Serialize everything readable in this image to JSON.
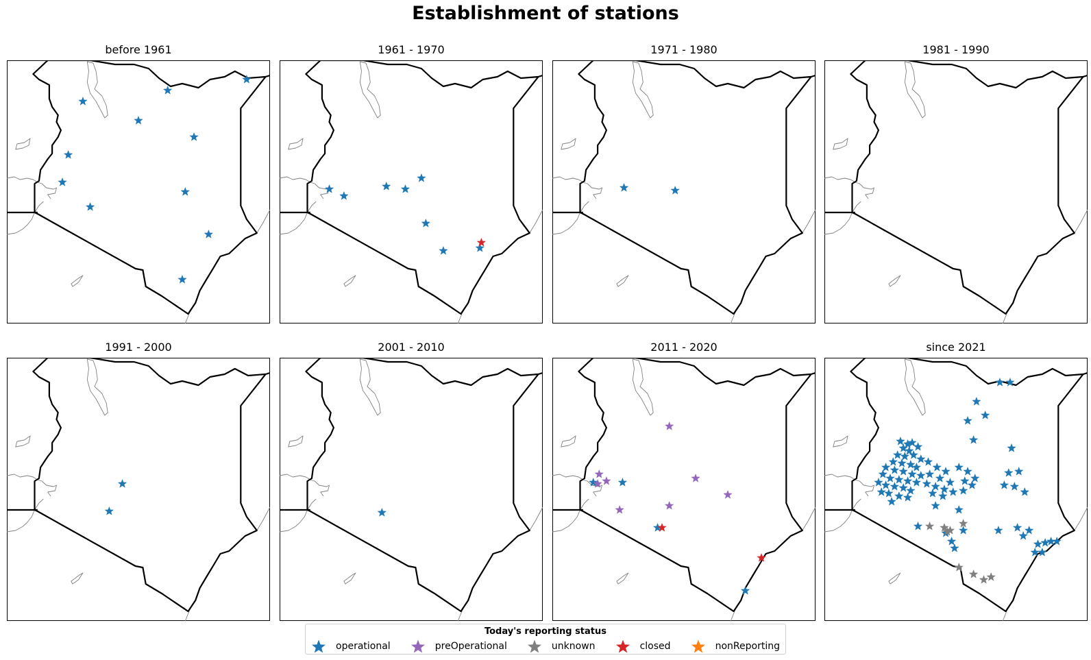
{
  "figure": {
    "title": "Establishment of stations"
  },
  "colors": {
    "operational": "#1f77b4",
    "preOperational": "#9467bd",
    "unknown": "#7f7f7f",
    "closed": "#d62728",
    "nonReporting": "#ff7f0e",
    "border": "#000000",
    "water": "#808080"
  },
  "legend": {
    "title": "Today's reporting status",
    "items": [
      {
        "key": "operational",
        "label": "operational"
      },
      {
        "key": "preOperational",
        "label": "preOperational"
      },
      {
        "key": "unknown",
        "label": "unknown"
      },
      {
        "key": "closed",
        "label": "closed"
      },
      {
        "key": "nonReporting",
        "label": "nonReporting"
      }
    ]
  },
  "chart_data": {
    "type": "map",
    "region": "Kenya",
    "marker": "star",
    "panels": [
      {
        "title": "before 1961",
        "stations": [
          {
            "lon": 35.6,
            "lat": 3.1,
            "status": "operational"
          },
          {
            "lon": 37.5,
            "lat": 2.4,
            "status": "operational"
          },
          {
            "lon": 38.5,
            "lat": 3.5,
            "status": "operational"
          },
          {
            "lon": 41.2,
            "lat": 3.9,
            "status": "operational"
          },
          {
            "lon": 39.4,
            "lat": 1.8,
            "status": "operational"
          },
          {
            "lon": 35.1,
            "lat": 1.15,
            "status": "operational"
          },
          {
            "lon": 34.9,
            "lat": 0.15,
            "status": "operational"
          },
          {
            "lon": 39.1,
            "lat": -0.2,
            "status": "operational"
          },
          {
            "lon": 35.85,
            "lat": -0.75,
            "status": "operational"
          },
          {
            "lon": 39.9,
            "lat": -1.75,
            "status": "operational"
          },
          {
            "lon": 39.0,
            "lat": -3.4,
            "status": "operational"
          }
        ]
      },
      {
        "title": "1961 - 1970",
        "stations": [
          {
            "lon": 34.7,
            "lat": -0.1,
            "status": "operational"
          },
          {
            "lon": 35.2,
            "lat": -0.35,
            "status": "operational"
          },
          {
            "lon": 36.65,
            "lat": 0.0,
            "status": "operational"
          },
          {
            "lon": 37.3,
            "lat": -0.1,
            "status": "operational"
          },
          {
            "lon": 37.85,
            "lat": 0.3,
            "status": "operational"
          },
          {
            "lon": 38.0,
            "lat": -1.35,
            "status": "operational"
          },
          {
            "lon": 38.6,
            "lat": -2.35,
            "status": "operational"
          },
          {
            "lon": 39.85,
            "lat": -2.25,
            "status": "operational"
          },
          {
            "lon": 39.9,
            "lat": -2.05,
            "status": "closed"
          }
        ]
      },
      {
        "title": "1971 - 1980",
        "stations": [
          {
            "lon": 35.45,
            "lat": -0.05,
            "status": "operational"
          },
          {
            "lon": 37.2,
            "lat": -0.15,
            "status": "operational"
          }
        ]
      },
      {
        "title": "1981 - 1990",
        "stations": []
      },
      {
        "title": "1991 - 2000",
        "stations": [
          {
            "lon": 36.95,
            "lat": 0.0,
            "status": "operational"
          },
          {
            "lon": 36.5,
            "lat": -1.0,
            "status": "operational"
          }
        ]
      },
      {
        "title": "2001 - 2010",
        "stations": [
          {
            "lon": 36.5,
            "lat": -1.05,
            "status": "operational"
          }
        ]
      },
      {
        "title": "2011 - 2020",
        "stations": [
          {
            "lon": 37.0,
            "lat": 2.1,
            "status": "preOperational"
          },
          {
            "lon": 34.6,
            "lat": 0.35,
            "status": "preOperational"
          },
          {
            "lon": 34.85,
            "lat": 0.1,
            "status": "preOperational"
          },
          {
            "lon": 34.4,
            "lat": 0.05,
            "status": "operational"
          },
          {
            "lon": 34.55,
            "lat": 0.0,
            "status": "preOperational"
          },
          {
            "lon": 35.4,
            "lat": 0.05,
            "status": "operational"
          },
          {
            "lon": 37.9,
            "lat": 0.2,
            "status": "preOperational"
          },
          {
            "lon": 39.0,
            "lat": -0.4,
            "status": "preOperational"
          },
          {
            "lon": 37.0,
            "lat": -0.8,
            "status": "preOperational"
          },
          {
            "lon": 35.3,
            "lat": -0.95,
            "status": "preOperational"
          },
          {
            "lon": 36.6,
            "lat": -1.6,
            "status": "operational"
          },
          {
            "lon": 36.75,
            "lat": -1.6,
            "status": "closed"
          },
          {
            "lon": 40.15,
            "lat": -2.7,
            "status": "closed"
          },
          {
            "lon": 39.6,
            "lat": -3.9,
            "status": "operational"
          }
        ]
      },
      {
        "title": "since 2021",
        "stations": [
          {
            "lon": 39.0,
            "lat": 3.7,
            "status": "operational"
          },
          {
            "lon": 39.35,
            "lat": 3.7,
            "status": "operational"
          },
          {
            "lon": 38.2,
            "lat": 3.0,
            "status": "operational"
          },
          {
            "lon": 38.5,
            "lat": 2.5,
            "status": "operational"
          },
          {
            "lon": 37.9,
            "lat": 2.3,
            "status": "operational"
          },
          {
            "lon": 38.1,
            "lat": 1.6,
            "status": "operational"
          },
          {
            "lon": 39.4,
            "lat": 1.3,
            "status": "operational"
          },
          {
            "lon": 35.6,
            "lat": 1.55,
            "status": "operational"
          },
          {
            "lon": 35.85,
            "lat": 1.45,
            "status": "operational"
          },
          {
            "lon": 36.0,
            "lat": 1.5,
            "status": "operational"
          },
          {
            "lon": 35.7,
            "lat": 1.3,
            "status": "operational"
          },
          {
            "lon": 35.9,
            "lat": 1.2,
            "status": "operational"
          },
          {
            "lon": 36.2,
            "lat": 1.35,
            "status": "operational"
          },
          {
            "lon": 35.5,
            "lat": 1.05,
            "status": "operational"
          },
          {
            "lon": 35.75,
            "lat": 1.0,
            "status": "operational"
          },
          {
            "lon": 36.05,
            "lat": 1.05,
            "status": "operational"
          },
          {
            "lon": 36.3,
            "lat": 0.9,
            "status": "operational"
          },
          {
            "lon": 35.35,
            "lat": 0.8,
            "status": "operational"
          },
          {
            "lon": 35.65,
            "lat": 0.75,
            "status": "operational"
          },
          {
            "lon": 35.95,
            "lat": 0.7,
            "status": "operational"
          },
          {
            "lon": 36.15,
            "lat": 0.6,
            "status": "operational"
          },
          {
            "lon": 35.1,
            "lat": 0.6,
            "status": "operational"
          },
          {
            "lon": 35.4,
            "lat": 0.5,
            "status": "operational"
          },
          {
            "lon": 35.7,
            "lat": 0.45,
            "status": "operational"
          },
          {
            "lon": 36.0,
            "lat": 0.35,
            "status": "operational"
          },
          {
            "lon": 36.3,
            "lat": 0.3,
            "status": "operational"
          },
          {
            "lon": 35.0,
            "lat": 0.35,
            "status": "operational"
          },
          {
            "lon": 35.25,
            "lat": 0.2,
            "status": "operational"
          },
          {
            "lon": 35.55,
            "lat": 0.15,
            "status": "operational"
          },
          {
            "lon": 35.85,
            "lat": 0.1,
            "status": "operational"
          },
          {
            "lon": 36.15,
            "lat": 0.05,
            "status": "operational"
          },
          {
            "lon": 34.85,
            "lat": 0.05,
            "status": "operational"
          },
          {
            "lon": 35.1,
            "lat": -0.05,
            "status": "operational"
          },
          {
            "lon": 35.4,
            "lat": -0.1,
            "status": "operational"
          },
          {
            "lon": 35.7,
            "lat": -0.15,
            "status": "operational"
          },
          {
            "lon": 35.95,
            "lat": -0.25,
            "status": "operational"
          },
          {
            "lon": 35.2,
            "lat": -0.35,
            "status": "operational"
          },
          {
            "lon": 35.55,
            "lat": -0.45,
            "status": "operational"
          },
          {
            "lon": 35.85,
            "lat": -0.5,
            "status": "operational"
          },
          {
            "lon": 34.95,
            "lat": -0.3,
            "status": "operational"
          },
          {
            "lon": 35.3,
            "lat": -0.65,
            "status": "operational"
          },
          {
            "lon": 36.55,
            "lat": 0.8,
            "status": "operational"
          },
          {
            "lon": 36.85,
            "lat": 0.6,
            "status": "operational"
          },
          {
            "lon": 37.15,
            "lat": 0.45,
            "status": "operational"
          },
          {
            "lon": 36.6,
            "lat": 0.35,
            "status": "operational"
          },
          {
            "lon": 36.95,
            "lat": 0.2,
            "status": "operational"
          },
          {
            "lon": 37.3,
            "lat": 0.05,
            "status": "operational"
          },
          {
            "lon": 36.5,
            "lat": 0.0,
            "status": "operational"
          },
          {
            "lon": 36.8,
            "lat": -0.1,
            "status": "operational"
          },
          {
            "lon": 37.1,
            "lat": -0.2,
            "status": "operational"
          },
          {
            "lon": 37.4,
            "lat": -0.3,
            "status": "operational"
          },
          {
            "lon": 36.7,
            "lat": -0.35,
            "status": "operational"
          },
          {
            "lon": 37.05,
            "lat": -0.45,
            "status": "operational"
          },
          {
            "lon": 37.6,
            "lat": 0.6,
            "status": "operational"
          },
          {
            "lon": 37.9,
            "lat": 0.45,
            "status": "operational"
          },
          {
            "lon": 38.15,
            "lat": 0.2,
            "status": "operational"
          },
          {
            "lon": 37.8,
            "lat": 0.1,
            "status": "operational"
          },
          {
            "lon": 38.05,
            "lat": -0.05,
            "status": "operational"
          },
          {
            "lon": 37.75,
            "lat": -0.25,
            "status": "operational"
          },
          {
            "lon": 36.8,
            "lat": -0.8,
            "status": "operational"
          },
          {
            "lon": 37.6,
            "lat": -0.95,
            "status": "operational"
          },
          {
            "lon": 39.3,
            "lat": 0.4,
            "status": "operational"
          },
          {
            "lon": 39.65,
            "lat": 0.45,
            "status": "operational"
          },
          {
            "lon": 39.15,
            "lat": -0.05,
            "status": "operational"
          },
          {
            "lon": 39.5,
            "lat": -0.1,
            "status": "operational"
          },
          {
            "lon": 39.85,
            "lat": -0.3,
            "status": "operational"
          },
          {
            "lon": 36.2,
            "lat": -1.55,
            "status": "operational"
          },
          {
            "lon": 37.15,
            "lat": -1.8,
            "status": "operational"
          },
          {
            "lon": 37.35,
            "lat": -2.1,
            "status": "operational"
          },
          {
            "lon": 37.45,
            "lat": -2.35,
            "status": "operational"
          },
          {
            "lon": 37.75,
            "lat": -1.7,
            "status": "operational"
          },
          {
            "lon": 38.95,
            "lat": -1.7,
            "status": "operational"
          },
          {
            "lon": 39.6,
            "lat": -1.6,
            "status": "operational"
          },
          {
            "lon": 40.0,
            "lat": -1.7,
            "status": "operational"
          },
          {
            "lon": 39.8,
            "lat": -1.9,
            "status": "operational"
          },
          {
            "lon": 40.3,
            "lat": -2.2,
            "status": "operational"
          },
          {
            "lon": 40.55,
            "lat": -2.15,
            "status": "operational"
          },
          {
            "lon": 40.75,
            "lat": -2.1,
            "status": "operational"
          },
          {
            "lon": 40.95,
            "lat": -2.1,
            "status": "operational"
          },
          {
            "lon": 40.2,
            "lat": -2.5,
            "status": "operational"
          },
          {
            "lon": 40.45,
            "lat": -2.5,
            "status": "operational"
          },
          {
            "lon": 36.6,
            "lat": -1.55,
            "status": "unknown"
          },
          {
            "lon": 37.1,
            "lat": -1.6,
            "status": "unknown"
          },
          {
            "lon": 37.3,
            "lat": -1.7,
            "status": "unknown"
          },
          {
            "lon": 37.2,
            "lat": -1.75,
            "status": "unknown"
          },
          {
            "lon": 37.75,
            "lat": -1.45,
            "status": "unknown"
          },
          {
            "lon": 37.6,
            "lat": -3.05,
            "status": "unknown"
          },
          {
            "lon": 38.1,
            "lat": -3.3,
            "status": "unknown"
          },
          {
            "lon": 38.45,
            "lat": -3.5,
            "status": "unknown"
          },
          {
            "lon": 38.7,
            "lat": -3.4,
            "status": "unknown"
          }
        ]
      }
    ]
  }
}
